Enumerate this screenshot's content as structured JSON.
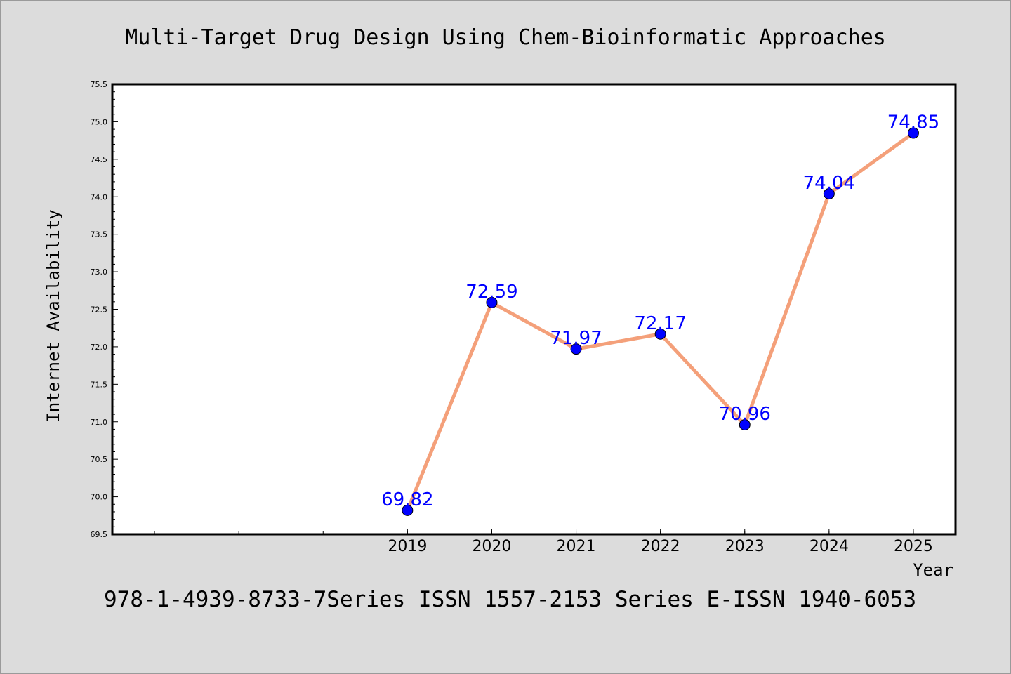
{
  "chart_data": {
    "type": "line",
    "title": "Multi-Target Drug Design Using Chem-Bioinformatic Approaches",
    "xlabel": "Year",
    "ylabel": "Internet Availability",
    "footer": "978-1-4939-8733-7Series ISSN 1557-2153 Series E-ISSN 1940-6053",
    "x": [
      "2019",
      "2020",
      "2021",
      "2022",
      "2023",
      "2024",
      "2025"
    ],
    "x_positions": [
      2019,
      2020,
      2021,
      2022,
      2023,
      2024,
      2025
    ],
    "xlim": [
      2015.5,
      2025.5
    ],
    "series": [
      {
        "values": [
          69.82,
          72.59,
          71.97,
          72.17,
          70.96,
          74.04,
          74.85
        ]
      }
    ],
    "data_labels": [
      "69.82",
      "72.59",
      "71.97",
      "72.17",
      "70.96",
      "74.04",
      "74.85"
    ],
    "ylim": [
      69.5,
      75.5
    ],
    "y_ticks": [
      "69.5",
      "70.0",
      "70.5",
      "71.0",
      "71.5",
      "72.0",
      "72.5",
      "73.0",
      "73.5",
      "74.0",
      "74.5",
      "75.0",
      "75.5"
    ],
    "grid": false,
    "legend": "none",
    "colors": {
      "line": "#f4a07a",
      "marker": "#0000ff",
      "label": "#0000ff",
      "background": "#dcdcdc",
      "plot_background": "#ffffff"
    }
  }
}
